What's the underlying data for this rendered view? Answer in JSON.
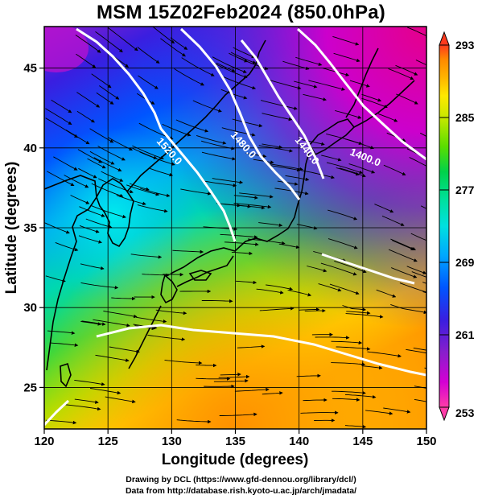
{
  "title": "MSM 15Z02Feb2024 (850.0hPa)",
  "x_axis": {
    "label": "Longitude (degrees)",
    "ticks": [
      "120",
      "125",
      "130",
      "135",
      "140",
      "145",
      "150"
    ],
    "range": [
      120,
      150
    ]
  },
  "y_axis": {
    "label": "Latitude  (degrees)",
    "ticks": [
      "25",
      "30",
      "35",
      "40",
      "45"
    ],
    "range": [
      22.4,
      47.6
    ]
  },
  "colorbar": {
    "ticks": [
      "253",
      "261",
      "269",
      "277",
      "285",
      "293"
    ],
    "range": [
      253,
      293
    ],
    "colors": [
      "#ff3ca8",
      "#d400d4",
      "#8a1ecc",
      "#3a1ee0",
      "#0055ff",
      "#00a8ff",
      "#00e0e0",
      "#00e0a0",
      "#00d24a",
      "#5ade00",
      "#c8e800",
      "#ffe800",
      "#ffb400",
      "#ff8a00",
      "#ff3a1e"
    ]
  },
  "contours": {
    "color": "#ffffff",
    "labels": [
      "1520.0",
      "1480.0",
      "1440.0",
      "1400.0"
    ]
  },
  "credits": {
    "line1": "Drawing by DCL (https://www.gfd-dennou.org/library/dcl/)",
    "line2": "Data from http://database.rish.kyoto-u.ac.jp/arch/jmadata/"
  }
}
